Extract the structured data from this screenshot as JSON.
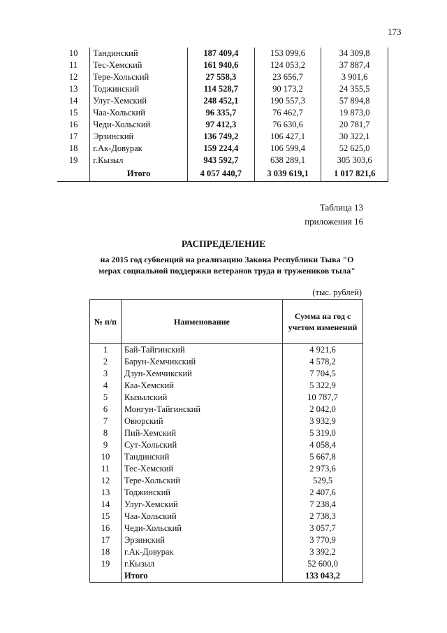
{
  "page_number": "173",
  "table_prev": {
    "rows": [
      [
        "10",
        "Тандинский",
        "187 409,4",
        "153 099,6",
        "34 309,8"
      ],
      [
        "11",
        "Тес-Хемский",
        "161 940,6",
        "124 053,2",
        "37 887,4"
      ],
      [
        "12",
        "Тере-Хольский",
        "27 558,3",
        "23 656,7",
        "3 901,6"
      ],
      [
        "13",
        "Тоджинский",
        "114 528,7",
        "90 173,2",
        "24 355,5"
      ],
      [
        "14",
        "Улуг-Хемский",
        "248 452,1",
        "190 557,3",
        "57 894,8"
      ],
      [
        "15",
        "Чаа-Хольский",
        "96 335,7",
        "76 462,7",
        "19 873,0"
      ],
      [
        "16",
        "Чеди-Хольский",
        "97 412,3",
        "76 630,6",
        "20 781,7"
      ],
      [
        "17",
        "Эрзинский",
        "136 749,2",
        "106 427,1",
        "30 322,1"
      ],
      [
        "18",
        "г.Ак-Довурак",
        "159 224,4",
        "106 599,4",
        "52 625,0"
      ],
      [
        "19",
        "г.Кызыл",
        "943 592,7",
        "638 289,1",
        "305 303,6"
      ]
    ],
    "total": [
      "Итого",
      "4 057 440,7",
      "3 039 619,1",
      "1 017 821,6"
    ]
  },
  "table_label_line1": "Таблица 13",
  "table_label_line2": "приложения 16",
  "title": "РАСПРЕДЕЛЕНИЕ",
  "subtitle_line1": "на 2015 год субвенций на реализацию Закона Республики Тыва \"О",
  "subtitle_line2": "мерах социальной поддержки ветеранов труда и тружеников тыла\"",
  "units": "(тыс. рублей)",
  "table13": {
    "headers": [
      "№ п/п",
      "Наименование",
      "Сумма на год с учетом изменений"
    ],
    "rows": [
      [
        "1",
        "Бай-Тайгинский",
        "4 921,6"
      ],
      [
        "2",
        "Барун-Хемчикский",
        "4 578,2"
      ],
      [
        "3",
        "Дзун-Хемчикский",
        "7 704,5"
      ],
      [
        "4",
        "Каа-Хемский",
        "5 322,9"
      ],
      [
        "5",
        "Кызылский",
        "10 787,7"
      ],
      [
        "6",
        "Монгун-Тайгинский",
        "2 042,0"
      ],
      [
        "7",
        "Овюрский",
        "3 932,9"
      ],
      [
        "8",
        "Пий-Хемский",
        "5 319,0"
      ],
      [
        "9",
        "Сут-Хольский",
        "4 058,4"
      ],
      [
        "10",
        "Тандинский",
        "5 667,8"
      ],
      [
        "11",
        "Тес-Хемский",
        "2 973,6"
      ],
      [
        "12",
        "Тере-Хольский",
        "529,5"
      ],
      [
        "13",
        "Тоджинский",
        "2 407,6"
      ],
      [
        "14",
        "Улуг-Хемский",
        "7 238,4"
      ],
      [
        "15",
        "Чаа-Хольский",
        "2 738,3"
      ],
      [
        "16",
        "Чеди-Хольский",
        "3 057,7"
      ],
      [
        "17",
        "Эрзинский",
        "3 770,9"
      ],
      [
        "18",
        "г.Ак-Довурак",
        "3 392,2"
      ],
      [
        "19",
        "г.Кызыл",
        "52 600,0"
      ]
    ],
    "total": [
      "Итого",
      "133 043,2"
    ]
  }
}
